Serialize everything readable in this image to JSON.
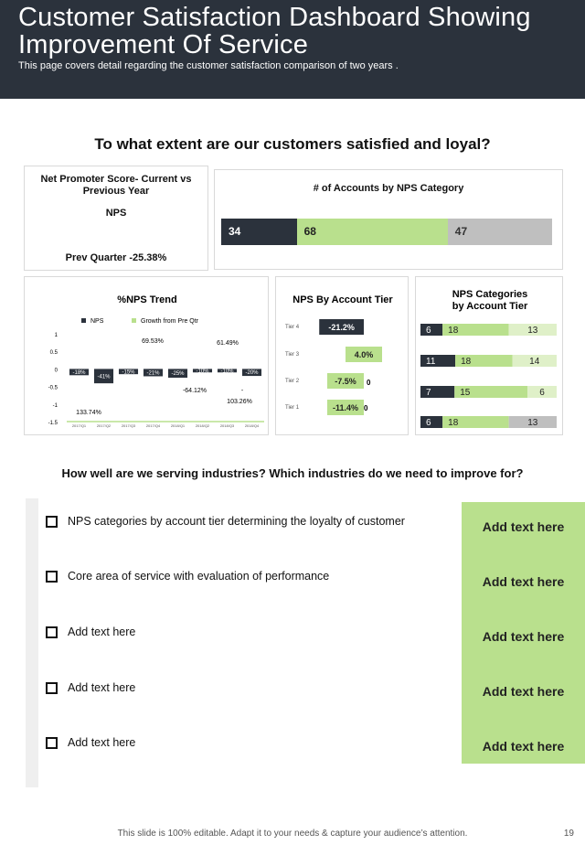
{
  "header": {
    "title_line1": "Customer Satisfaction Dashboard Showing",
    "title_line2": "Improvement Of Service",
    "subtitle": "This page covers detail regarding  the customer satisfaction comparison of two years ."
  },
  "question1": "To what extent are our customers satisfied  and loyal?",
  "nps_card": {
    "title_line1": "Net Promoter Score- Current vs",
    "title_line2": "Previous Year",
    "nps_label": "NPS",
    "prev_quarter": "Prev Quarter -25.38%"
  },
  "accounts_card": {
    "title": "# of Accounts by NPS Category",
    "segments": [
      {
        "value": "34",
        "num": 34,
        "color": "#2b323c",
        "text_color": "#ffffff"
      },
      {
        "value": "68",
        "num": 68,
        "color": "#b9e08d",
        "text_color": "#222222"
      },
      {
        "value": "47",
        "num": 47,
        "color": "#bfbfbf",
        "text_color": "#333333"
      }
    ]
  },
  "colors": {
    "dark": "#2b323c",
    "green": "#b9e08d",
    "light_green": "#dff0c8",
    "gray": "#bfbfbf"
  },
  "chart_data": [
    {
      "type": "bar",
      "title": "%NPS Trend",
      "legend": [
        "NPS",
        "Growth  from Pre Qtr"
      ],
      "ylim": [
        -1.5,
        1
      ],
      "yticks": [
        "1",
        "0.5",
        "0",
        "-0.5",
        "-1",
        "-1.5"
      ],
      "categories": [
        "2017/Q1",
        "2017/Q2",
        "2017/Q3",
        "2017/Q4",
        "2018/Q1",
        "2018/Q2",
        "2018/Q3",
        "2018/Q4"
      ],
      "series": [
        {
          "name": "NPS",
          "values": [
            -0.18,
            -0.41,
            -0.15,
            -0.21,
            -0.25,
            -0.1,
            -0.1,
            -0.2
          ],
          "labels": [
            "-18%",
            "-41%",
            "-15%",
            "-21%",
            "-25%",
            "-10%",
            "-10%",
            "-20%"
          ]
        }
      ],
      "annotations": [
        "133.74%",
        "69.53%",
        "-64.12%",
        "61.49%",
        "-",
        "103.26%"
      ]
    },
    {
      "type": "bar",
      "title": "NPS By Account Tier",
      "categories": [
        "Tier 4",
        "Tier 3",
        "Tier 2",
        "Tier 1"
      ],
      "values": [
        -21.2,
        4.0,
        -7.5,
        -11.4
      ],
      "labels": [
        "-21.2%",
        "4.0%",
        "-7.5%",
        "-11.4%"
      ],
      "side_labels": [
        "0",
        "0"
      ]
    },
    {
      "type": "bar",
      "title": "NPS Categories by Account Tier",
      "series": [
        {
          "name": "row1",
          "values": [
            6,
            18,
            13
          ],
          "labels": [
            "6",
            "18",
            "13"
          ]
        },
        {
          "name": "row2",
          "values": [
            11,
            18,
            14
          ],
          "labels": [
            "11",
            "18",
            "14"
          ]
        },
        {
          "name": "row3",
          "values": [
            7,
            15,
            6
          ],
          "labels": [
            "7",
            "15",
            "6"
          ]
        },
        {
          "name": "row4",
          "values": [
            6,
            18,
            13
          ],
          "labels": [
            "6",
            "18",
            "13"
          ]
        }
      ]
    }
  ],
  "question2": "How well are we serving industries? Which industries  do we need to improve for?",
  "list_items": [
    "NPS categories by account tier determining the loyalty  of customer",
    "Core area of service with evaluation  of performance",
    "Add text here",
    "Add text here",
    "Add text here"
  ],
  "green_texts": [
    "Add text here",
    "Add text here",
    "Add text here",
    "Add text here",
    "Add text here"
  ],
  "footer": "This slide is 100% editable. Adapt it to your needs & capture your audience’s attention.",
  "page_number": "19"
}
